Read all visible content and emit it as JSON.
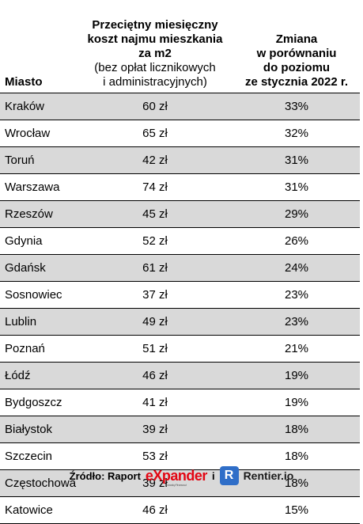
{
  "table": {
    "headers": {
      "city": "Miasto",
      "cost_line1": "Przeciętny miesięczny",
      "cost_line2": "koszt najmu mieszkania",
      "cost_line3": "za m2",
      "cost_note1": "(bez opłat licznikowych",
      "cost_note2": "i administracyjnych)",
      "change_line1": "Zmiana",
      "change_line2": "w porównaniu",
      "change_line3": "do poziomu",
      "change_line4": "ze stycznia 2022 r."
    },
    "rows": [
      {
        "city": "Kraków",
        "cost": "60 zł",
        "change": "33%"
      },
      {
        "city": "Wrocław",
        "cost": "65 zł",
        "change": "32%"
      },
      {
        "city": "Toruń",
        "cost": "42 zł",
        "change": "31%"
      },
      {
        "city": "Warszawa",
        "cost": "74 zł",
        "change": "31%"
      },
      {
        "city": "Rzeszów",
        "cost": "45 zł",
        "change": "29%"
      },
      {
        "city": "Gdynia",
        "cost": "52 zł",
        "change": "26%"
      },
      {
        "city": "Gdańsk",
        "cost": "61 zł",
        "change": "24%"
      },
      {
        "city": "Sosnowiec",
        "cost": "37 zł",
        "change": "23%"
      },
      {
        "city": "Lublin",
        "cost": "49 zł",
        "change": "23%"
      },
      {
        "city": "Poznań",
        "cost": "51 zł",
        "change": "21%"
      },
      {
        "city": "Łódź",
        "cost": "46 zł",
        "change": "19%"
      },
      {
        "city": "Bydgoszcz",
        "cost": "41 zł",
        "change": "19%"
      },
      {
        "city": "Białystok",
        "cost": "39 zł",
        "change": "18%"
      },
      {
        "city": "Szczecin",
        "cost": "53 zł",
        "change": "18%"
      },
      {
        "city": "Częstochowa",
        "cost": "39 zł",
        "change": "18%"
      },
      {
        "city": "Katowice",
        "cost": "46 zł",
        "change": "15%"
      }
    ]
  },
  "footer": {
    "source_label": "Źródło: Raport",
    "expander_brand": "eXpander",
    "expander_tagline": "Doradcy Finansowi",
    "connector": "i",
    "rentier_letter": "R",
    "rentier_brand": "Rentier.io"
  },
  "colors": {
    "shade_row": "#d9d9d9",
    "expander_red": "#e30613",
    "rentier_blue": "#2f6ec8"
  }
}
